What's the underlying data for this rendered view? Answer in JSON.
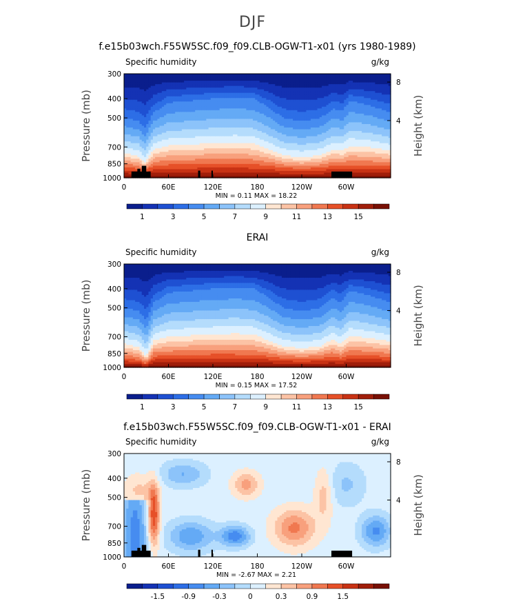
{
  "figure": {
    "title": "DJF"
  },
  "chart_data": [
    {
      "type": "heatmap",
      "title": "f.e15b03wch.F55W5SC.f09_f09.CLB-OGW-T1-x01 (yrs 1980-1989)",
      "variable": "Specific humidity",
      "units": "g/kg",
      "ylabel": "Pressure (mb)",
      "ylabel_right": "Height (km)",
      "x_ticks": [
        "0",
        "60E",
        "120E",
        "180",
        "120W",
        "60W"
      ],
      "y_ticks": [
        "300",
        "400",
        "500",
        "700",
        "850",
        "1000"
      ],
      "y_right_ticks": [
        "8",
        "4"
      ],
      "stats": {
        "min_label": "MIN =",
        "min": "0.11",
        "max_label": "MAX =",
        "max": "18.22"
      },
      "colorbar": {
        "labels": [
          "1",
          "3",
          "5",
          "7",
          "9",
          "11",
          "13",
          "15"
        ],
        "colors": [
          "#0a1e8c",
          "#1432b4",
          "#1e50d2",
          "#2d6ee6",
          "#468cf0",
          "#64aaf5",
          "#8cc3fa",
          "#b4dcfc",
          "#dcf0ff",
          "#ffe6d2",
          "#fcc3a5",
          "#f8a07d",
          "#f07850",
          "#e65028",
          "#c83214",
          "#a01e0a",
          "#781005"
        ]
      },
      "longitude_profile": [
        [
          0,
          500,
          750,
          880
        ],
        [
          20,
          520,
          780,
          900
        ],
        [
          28,
          560,
          840,
          920
        ],
        [
          40,
          470,
          720,
          870
        ],
        [
          60,
          420,
          690,
          860
        ],
        [
          90,
          410,
          680,
          855
        ],
        [
          120,
          400,
          670,
          850
        ],
        [
          150,
          395,
          665,
          850
        ],
        [
          175,
          400,
          675,
          855
        ],
        [
          195,
          440,
          720,
          870
        ],
        [
          215,
          500,
          770,
          890
        ],
        [
          240,
          520,
          790,
          900
        ],
        [
          265,
          500,
          770,
          890
        ],
        [
          282,
          450,
          720,
          870
        ],
        [
          295,
          460,
          730,
          875
        ],
        [
          305,
          410,
          690,
          860
        ],
        [
          330,
          430,
          700,
          865
        ],
        [
          360,
          470,
          730,
          875
        ]
      ]
    },
    {
      "type": "heatmap",
      "title": "ERAI",
      "variable": "Specific humidity",
      "units": "g/kg",
      "ylabel": "Pressure (mb)",
      "ylabel_right": "Height (km)",
      "x_ticks": [
        "0",
        "60E",
        "120E",
        "180",
        "120W",
        "60W"
      ],
      "y_ticks": [
        "300",
        "400",
        "500",
        "700",
        "850",
        "1000"
      ],
      "y_right_ticks": [
        "8",
        "4"
      ],
      "stats": {
        "min_label": "MIN =",
        "min": "0.15",
        "max_label": "MAX =",
        "max": "17.52"
      },
      "colorbar": {
        "labels": [
          "1",
          "3",
          "5",
          "7",
          "9",
          "11",
          "13",
          "15"
        ],
        "colors": [
          "#0a1e8c",
          "#1432b4",
          "#1e50d2",
          "#2d6ee6",
          "#468cf0",
          "#64aaf5",
          "#8cc3fa",
          "#b4dcfc",
          "#dcf0ff",
          "#ffe6d2",
          "#fcc3a5",
          "#f8a07d",
          "#f07850",
          "#e65028",
          "#c83214",
          "#a01e0a",
          "#781005"
        ]
      },
      "longitude_profile": [
        [
          0,
          500,
          760,
          900
        ],
        [
          20,
          520,
          790,
          920
        ],
        [
          30,
          580,
          880,
          960
        ],
        [
          40,
          470,
          730,
          880
        ],
        [
          60,
          420,
          700,
          870
        ],
        [
          90,
          410,
          690,
          865
        ],
        [
          120,
          400,
          680,
          860
        ],
        [
          150,
          395,
          675,
          860
        ],
        [
          175,
          400,
          680,
          865
        ],
        [
          195,
          440,
          730,
          880
        ],
        [
          215,
          500,
          780,
          900
        ],
        [
          240,
          520,
          800,
          910
        ],
        [
          265,
          500,
          780,
          900
        ],
        [
          282,
          440,
          720,
          880
        ],
        [
          292,
          470,
          760,
          900
        ],
        [
          305,
          410,
          690,
          865
        ],
        [
          330,
          430,
          710,
          870
        ],
        [
          360,
          470,
          740,
          885
        ]
      ]
    },
    {
      "type": "heatmap",
      "title": "f.e15b03wch.F55W5SC.f09_f09.CLB-OGW-T1-x01 - ERAI",
      "variable": "Specific humidity",
      "units": "g/kg",
      "ylabel": "Pressure (mb)",
      "ylabel_right": "Height (km)",
      "x_ticks": [
        "0",
        "60E",
        "120E",
        "180",
        "120W",
        "60W"
      ],
      "y_ticks": [
        "300",
        "400",
        "500",
        "700",
        "850",
        "1000"
      ],
      "y_right_ticks": [
        "8",
        "4"
      ],
      "stats": {
        "min_label": "MIN =",
        "min": "-2.67",
        "max_label": "MAX =",
        "max": "2.21"
      },
      "colorbar": {
        "labels": [
          "-1.5",
          "-0.9",
          "-0.3",
          "0",
          "0.3",
          "0.9",
          "1.5"
        ],
        "colors": [
          "#0a1e8c",
          "#1432b4",
          "#1e50d2",
          "#2d6ee6",
          "#468cf0",
          "#64aaf5",
          "#8cc3fa",
          "#b4dcfc",
          "#dcf0ff",
          "#ffe6d2",
          "#fcc3a5",
          "#f8a07d",
          "#f07850",
          "#e65028",
          "#c83214",
          "#a01e0a",
          "#781005"
        ]
      }
    }
  ]
}
